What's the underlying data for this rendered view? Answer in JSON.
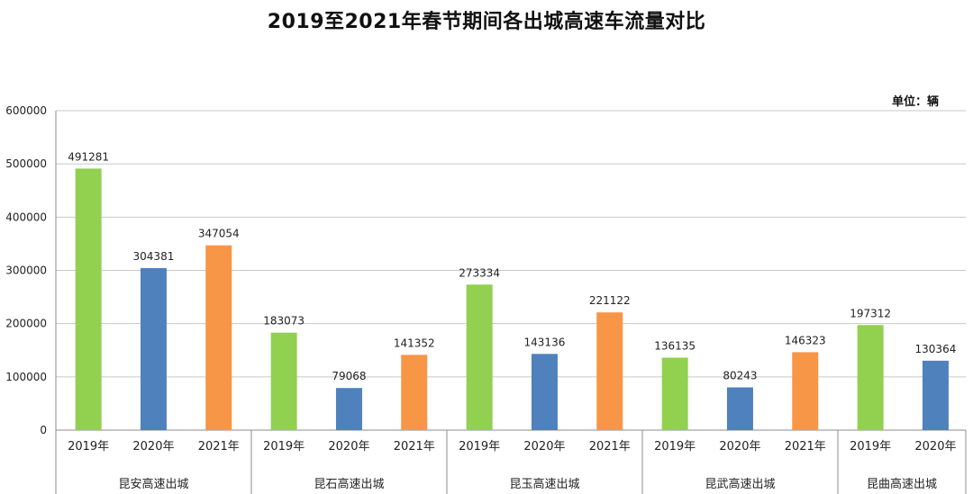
{
  "chart_data": {
    "type": "bar",
    "title": "2019至2021年春节期间各出城高速车流量对比",
    "unit": "单位：辆",
    "ylim": [
      0,
      600000
    ],
    "yticks": [
      0,
      100000,
      200000,
      300000,
      400000,
      500000,
      600000
    ],
    "grid": true,
    "groups": [
      {
        "name": "昆安高速出城",
        "bars": [
          {
            "year": "2019年",
            "value": 491281
          },
          {
            "year": "2020年",
            "value": 304381
          },
          {
            "year": "2021年",
            "value": 347054
          }
        ]
      },
      {
        "name": "昆石高速出城",
        "bars": [
          {
            "year": "2019年",
            "value": 183073
          },
          {
            "year": "2020年",
            "value": 79068
          },
          {
            "year": "2021年",
            "value": 141352
          }
        ]
      },
      {
        "name": "昆玉高速出城",
        "bars": [
          {
            "year": "2019年",
            "value": 273334
          },
          {
            "year": "2020年",
            "value": 143136
          },
          {
            "year": "2021年",
            "value": 221122
          }
        ]
      },
      {
        "name": "昆武高速出城",
        "bars": [
          {
            "year": "2019年",
            "value": 136135
          },
          {
            "year": "2020年",
            "value": 80243
          },
          {
            "year": "2021年",
            "value": 146323
          }
        ]
      },
      {
        "name": "昆曲高速出城",
        "bars": [
          {
            "year": "2019年",
            "value": 197312
          },
          {
            "year": "2020年",
            "value": 130364
          }
        ]
      }
    ],
    "colors": {
      "2019年": "#92d050",
      "2020年": "#4f81bd",
      "2021年": "#f79646"
    }
  }
}
